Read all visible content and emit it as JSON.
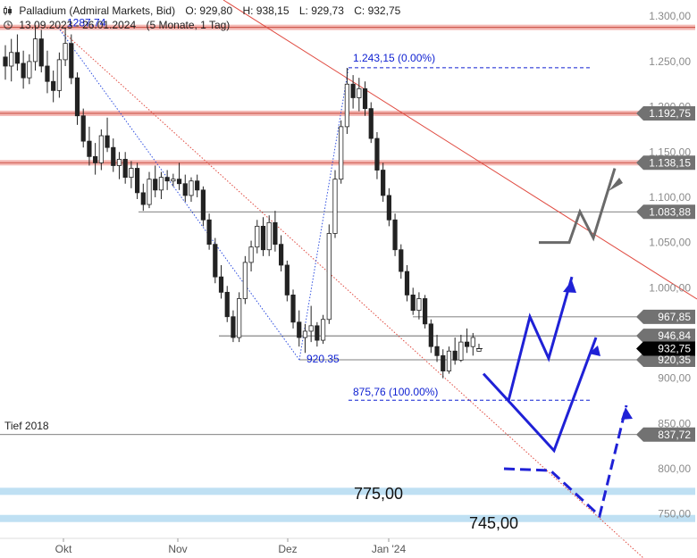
{
  "header": {
    "instrument": "Palladium (Admiral Markets, Bid)",
    "open": "O: 929,80",
    "high": "H: 938,15",
    "low": "L: 929,73",
    "close": "C: 932,75",
    "range": "13.09.2023 - 26.01.2024",
    "period": "(5 Monate, 1 Tag)"
  },
  "chart_data": {
    "type": "candlestick",
    "y_ticks": [
      {
        "value": 1300,
        "label": "1.300,00"
      },
      {
        "value": 1250,
        "label": "1.250,00"
      },
      {
        "value": 1200,
        "label": "1.200,00"
      },
      {
        "value": 1150,
        "label": "1.150,00"
      },
      {
        "value": 1100,
        "label": "1.100,00"
      },
      {
        "value": 1050,
        "label": "1.050,00"
      },
      {
        "value": 1000,
        "label": "1.000,00"
      },
      {
        "value": 950,
        "label": "950,00"
      },
      {
        "value": 900,
        "label": "900,00"
      },
      {
        "value": 850,
        "label": "850,00"
      },
      {
        "value": 800,
        "label": "800,00"
      },
      {
        "value": 750,
        "label": "750,00"
      }
    ],
    "x_ticks": [
      "Okt",
      "Nov",
      "Dez",
      "Jan '24"
    ],
    "ylim": [
      726,
      1318
    ],
    "grid": false,
    "ohlc": [
      [
        1255,
        1268,
        1230,
        1245
      ],
      [
        1245,
        1275,
        1228,
        1260
      ],
      [
        1260,
        1280,
        1240,
        1248
      ],
      [
        1248,
        1262,
        1220,
        1232
      ],
      [
        1232,
        1258,
        1225,
        1250
      ],
      [
        1250,
        1290,
        1240,
        1275
      ],
      [
        1275,
        1285,
        1238,
        1245
      ],
      [
        1245,
        1262,
        1215,
        1228
      ],
      [
        1228,
        1240,
        1205,
        1218
      ],
      [
        1218,
        1260,
        1210,
        1252
      ],
      [
        1252,
        1287,
        1245,
        1270
      ],
      [
        1270,
        1280,
        1225,
        1232
      ],
      [
        1232,
        1238,
        1180,
        1190
      ],
      [
        1190,
        1198,
        1155,
        1162
      ],
      [
        1162,
        1178,
        1135,
        1145
      ],
      [
        1145,
        1160,
        1125,
        1138
      ],
      [
        1138,
        1175,
        1130,
        1168
      ],
      [
        1168,
        1188,
        1150,
        1155
      ],
      [
        1155,
        1165,
        1128,
        1135
      ],
      [
        1135,
        1150,
        1120,
        1142
      ],
      [
        1142,
        1150,
        1115,
        1122
      ],
      [
        1122,
        1140,
        1110,
        1132
      ],
      [
        1132,
        1138,
        1098,
        1105
      ],
      [
        1105,
        1115,
        1085,
        1092
      ],
      [
        1092,
        1128,
        1088,
        1120
      ],
      [
        1120,
        1135,
        1100,
        1108
      ],
      [
        1108,
        1128,
        1098,
        1122
      ],
      [
        1122,
        1130,
        1108,
        1118
      ],
      [
        1118,
        1126,
        1112,
        1120
      ],
      [
        1120,
        1138,
        1108,
        1115
      ],
      [
        1115,
        1125,
        1095,
        1102
      ],
      [
        1102,
        1122,
        1095,
        1118
      ],
      [
        1118,
        1125,
        1100,
        1108
      ],
      [
        1108,
        1112,
        1068,
        1075
      ],
      [
        1075,
        1082,
        1042,
        1048
      ],
      [
        1048,
        1055,
        1005,
        1012
      ],
      [
        1012,
        1025,
        988,
        995
      ],
      [
        995,
        1002,
        962,
        968
      ],
      [
        968,
        975,
        940,
        945
      ],
      [
        945,
        995,
        940,
        988
      ],
      [
        988,
        1035,
        982,
        1028
      ],
      [
        1028,
        1052,
        1018,
        1045
      ],
      [
        1045,
        1075,
        1038,
        1068
      ],
      [
        1068,
        1078,
        1035,
        1042
      ],
      [
        1042,
        1080,
        1035,
        1072
      ],
      [
        1072,
        1085,
        1040,
        1048
      ],
      [
        1048,
        1058,
        1018,
        1025
      ],
      [
        1025,
        1030,
        985,
        992
      ],
      [
        992,
        998,
        955,
        962
      ],
      [
        962,
        975,
        935,
        945
      ],
      [
        945,
        960,
        928,
        952
      ],
      [
        952,
        980,
        940,
        958
      ],
      [
        958,
        962,
        935,
        942
      ],
      [
        942,
        970,
        938,
        965
      ],
      [
        965,
        1070,
        960,
        1060
      ],
      [
        1060,
        1130,
        1055,
        1120
      ],
      [
        1120,
        1185,
        1115,
        1178
      ],
      [
        1178,
        1243,
        1170,
        1225
      ],
      [
        1225,
        1235,
        1198,
        1210
      ],
      [
        1210,
        1232,
        1195,
        1220
      ],
      [
        1220,
        1228,
        1190,
        1198
      ],
      [
        1198,
        1205,
        1160,
        1165
      ],
      [
        1165,
        1172,
        1120,
        1130
      ],
      [
        1130,
        1138,
        1095,
        1102
      ],
      [
        1102,
        1110,
        1068,
        1075
      ],
      [
        1075,
        1082,
        1035,
        1042
      ],
      [
        1042,
        1048,
        1010,
        1018
      ],
      [
        1018,
        1025,
        985,
        992
      ],
      [
        992,
        1000,
        970,
        975
      ],
      [
        975,
        995,
        965,
        988
      ],
      [
        988,
        992,
        955,
        960
      ],
      [
        960,
        965,
        928,
        935
      ],
      [
        935,
        948,
        918,
        925
      ],
      [
        925,
        932,
        900,
        908
      ],
      [
        908,
        935,
        905,
        930
      ],
      [
        930,
        945,
        915,
        920
      ],
      [
        920,
        948,
        918,
        940
      ],
      [
        940,
        955,
        928,
        935
      ],
      [
        935,
        950,
        925,
        945
      ],
      [
        929.8,
        938.15,
        929.73,
        932.75
      ]
    ],
    "horizontal_lines": [
      {
        "value": 1287.74,
        "style": "zone-red",
        "label": ""
      },
      {
        "value": 1192.75,
        "style": "zone-red",
        "label": "1.192,75"
      },
      {
        "value": 1138.15,
        "style": "zone-red",
        "label": "1.138,15"
      },
      {
        "value": 1083.88,
        "style": "grey-line",
        "label": "1.083,88"
      },
      {
        "value": 967.85,
        "style": "grey-line",
        "label": "967,85"
      },
      {
        "value": 946.84,
        "style": "grey-line",
        "label": "946,84"
      },
      {
        "value": 920.35,
        "style": "grey-line",
        "label": "920,35"
      },
      {
        "value": 837.72,
        "style": "grey-line",
        "label": "837,72"
      },
      {
        "value": 775.0,
        "style": "zone-blue",
        "label": ""
      },
      {
        "value": 745.0,
        "style": "zone-blue",
        "label": ""
      }
    ],
    "current_price": {
      "value": 932.75,
      "label": "932,75"
    },
    "annotations": {
      "high_label": "1287.74",
      "low_label": "920.35",
      "fib_top": "1.243,15 (0.00%)",
      "fib_bottom": "875,76 (100.00%)",
      "tief_2018": "Tief 2018",
      "zone_775": "775,00",
      "zone_745": "745,00"
    },
    "colors": {
      "up": "#ffffff",
      "down": "#222222",
      "wick": "#222222",
      "trend_red": "#e04b41",
      "zone_red": "#f4b9b5",
      "zone_blue": "#bfe0f3",
      "projection_blue": "#1f21d6",
      "projection_grey": "#6a6a6a",
      "label_text": "#0d1fd1",
      "price_tag": "#727272",
      "current_tag": "#000000"
    }
  }
}
